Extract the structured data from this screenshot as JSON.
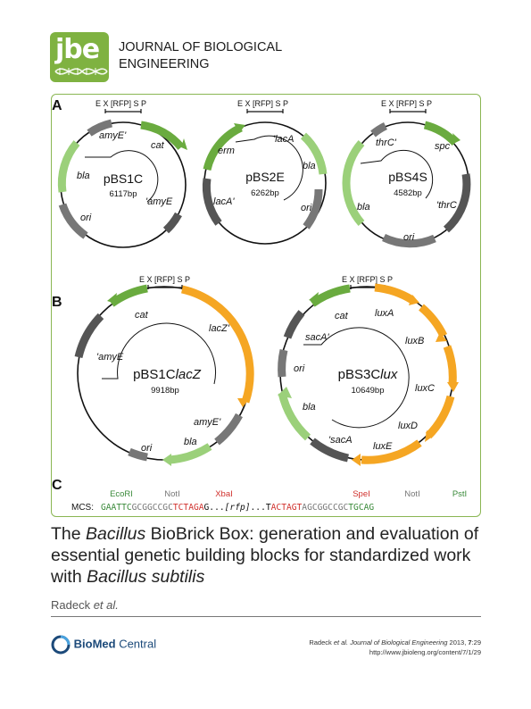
{
  "logo": {
    "text": "jbe"
  },
  "journal": {
    "line1": "JOURNAL OF BIOLOGICAL",
    "line2": "ENGINEERING"
  },
  "figure": {
    "panel_labels": {
      "a": "A",
      "b": "B",
      "c": "C"
    },
    "site_header": "E X [RFP] S P",
    "plasmids": [
      {
        "name": "pBS1C",
        "size": "6117bp",
        "labels": [
          "amyE'",
          "cat",
          "bla",
          "'amyE",
          "ori"
        ]
      },
      {
        "name": "pBS2E",
        "size": "6262bp",
        "labels": [
          "erm",
          "'lacA",
          "bla",
          "lacA'",
          "ori"
        ]
      },
      {
        "name": "pBS4S",
        "size": "4582bp",
        "labels": [
          "thrC'",
          "spc",
          "bla",
          "'thrC",
          "ori"
        ]
      },
      {
        "name_prefix": "pBS1C",
        "name_italic": "lacZ",
        "size": "9918bp",
        "labels": [
          "cat",
          "'amyE",
          "lacZ'",
          "amyE'",
          "bla",
          "ori"
        ]
      },
      {
        "name_prefix": "pBS3C",
        "name_italic": "lux",
        "size": "10649bp",
        "labels": [
          "cat",
          "sacA'",
          "ori",
          "bla",
          "'sacA",
          "luxA",
          "luxB",
          "luxC",
          "luxD",
          "luxE"
        ]
      }
    ],
    "mcs": {
      "label": "MCS:",
      "enzymes": [
        "EcoRI",
        "NotI",
        "XbaI",
        "SpeI",
        "NotI",
        "PstI"
      ],
      "seq_ecori": "GAATTC",
      "seq_noti1": "GCGGCCGC",
      "seq_xbai": "TCTAGA",
      "seq_g": "G...",
      "seq_rfp": "[rfp]",
      "seq_dots": "...",
      "seq_t": "T",
      "seq_spei": "ACTAGT",
      "seq_noti2": "AGCGGCCGC",
      "seq_psti": "TGCAG"
    }
  },
  "title": {
    "part1": "The ",
    "italic1": "Bacillus",
    "part2": " BioBrick Box: generation and evaluation of essential genetic building blocks for standardized work with ",
    "italic2": "Bacillus subtilis"
  },
  "authors": {
    "name": "Radeck ",
    "etal": "et al."
  },
  "publisher": {
    "bold": "BioMed",
    "normal": " Central"
  },
  "citation": {
    "line1_prefix": "Radeck ",
    "line1_etal": "et al.",
    "line1_journal": " Journal of Biological Engineering",
    "line1_year": " 2013, ",
    "line1_vol": "7",
    "line1_page": ":29",
    "line2": "http://www.jbioleng.org/content/7/1/29"
  },
  "colors": {
    "green": "#6aab3f",
    "light_green": "#9bd07a",
    "gray": "#777777",
    "orange": "#f5a623",
    "red": "#d0312d",
    "mcs_green": "#3a8a3a",
    "frame": "#8ab653"
  }
}
